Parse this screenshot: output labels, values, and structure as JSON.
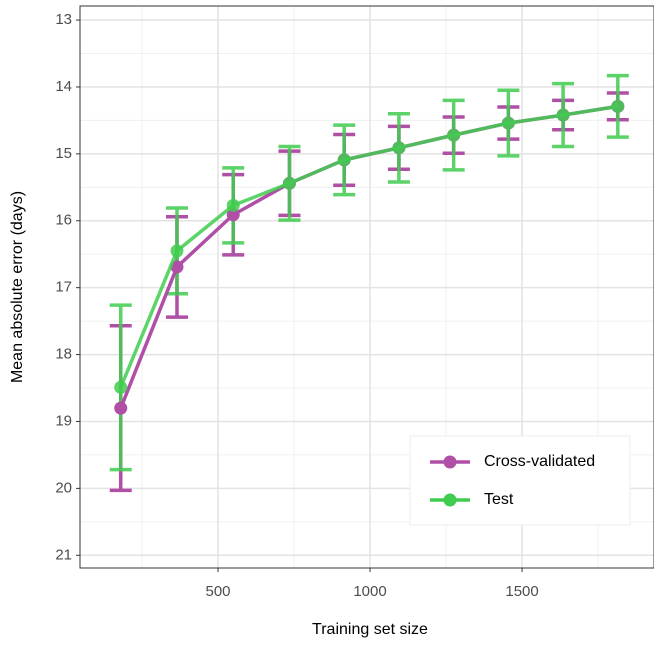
{
  "chart_data": {
    "type": "line",
    "x_label": "Training set size",
    "y_label": "Mean absolute error (days)",
    "x": [
      180,
      365,
      550,
      735,
      915,
      1095,
      1275,
      1455,
      1635,
      1815
    ],
    "series": [
      {
        "name": "Cross-validated",
        "color": "#b04fa6",
        "values": [
          18.8,
          16.69,
          15.91,
          15.44,
          15.09,
          14.91,
          14.72,
          14.54,
          14.42,
          14.29
        ],
        "errors": [
          1.23,
          0.75,
          0.6,
          0.48,
          0.38,
          0.32,
          0.27,
          0.24,
          0.22,
          0.2
        ]
      },
      {
        "name": "Test",
        "color": "#3fcc4f",
        "values": [
          18.49,
          16.45,
          15.77,
          15.44,
          15.09,
          14.91,
          14.72,
          14.54,
          14.42,
          14.29
        ],
        "errors": [
          1.23,
          0.64,
          0.56,
          0.55,
          0.52,
          0.51,
          0.52,
          0.49,
          0.47,
          0.46
        ]
      }
    ],
    "xlim": [
      46,
      1934
    ],
    "xticks": [
      500,
      1000,
      1500
    ],
    "ylim": [
      12.79,
      21.19
    ],
    "yticks": [
      13,
      14,
      15,
      16,
      17,
      18,
      19,
      20,
      21
    ],
    "y_reversed": true,
    "grid": true,
    "legend_position": "bottom-right"
  }
}
